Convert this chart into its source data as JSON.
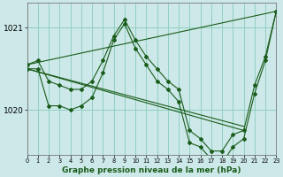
{
  "title": "Graphe pression niveau de la mer (hPa)",
  "bg_color": "#cce8e8",
  "grid_color": "#88ccbb",
  "line_color": "#1a5c1a",
  "xlim": [
    0,
    23
  ],
  "ylim": [
    1019.45,
    1021.3
  ],
  "ytick_positions": [
    1020.0,
    1021.0
  ],
  "ytick_labels": [
    "1020",
    "1021"
  ],
  "xticks": [
    0,
    1,
    2,
    3,
    4,
    5,
    6,
    7,
    8,
    9,
    10,
    11,
    12,
    13,
    14,
    15,
    16,
    17,
    18,
    19,
    20,
    21,
    22,
    23
  ],
  "line_jagged1": {
    "x": [
      0,
      1,
      2,
      3,
      4,
      5,
      6,
      7,
      8,
      9,
      10,
      11,
      12,
      13,
      14,
      15,
      16,
      17,
      18,
      19,
      20,
      21,
      22,
      23
    ],
    "y": [
      1020.55,
      1020.6,
      1020.35,
      1020.3,
      1020.25,
      1020.25,
      1020.35,
      1020.6,
      1020.9,
      1021.1,
      1020.85,
      1020.65,
      1020.45,
      1020.35,
      1020.3,
      1019.75,
      1019.65,
      1019.5,
      1019.5,
      1019.7,
      1019.75,
      1020.3,
      1020.65,
      1021.2
    ]
  },
  "line_jagged2": {
    "x": [
      0,
      1,
      2,
      3,
      4,
      5,
      6,
      7,
      8,
      9,
      10,
      11,
      12,
      13,
      14,
      15,
      16,
      17,
      18,
      19,
      20,
      21,
      22,
      23
    ],
    "y": [
      1020.5,
      1020.5,
      1020.05,
      1020.05,
      1020.0,
      1020.05,
      1020.15,
      1020.45,
      1020.85,
      1021.05,
      1020.75,
      1020.55,
      1020.35,
      1020.25,
      1020.1,
      1019.6,
      1019.55,
      1019.4,
      1019.35,
      1019.55,
      1019.65,
      1020.2,
      1020.6,
      1021.2
    ]
  },
  "line_sparse1": {
    "x": [
      0,
      2,
      3,
      5,
      6,
      7,
      8,
      9,
      10,
      11,
      12,
      13,
      14,
      15,
      16,
      17,
      18,
      19,
      20
    ],
    "y": [
      1020.5,
      1020.05,
      1020.05,
      1020.05,
      1020.15,
      1020.45,
      1020.85,
      1021.05,
      1020.75,
      1020.55,
      1020.35,
      1020.25,
      1020.1,
      1019.6,
      1019.55,
      1019.4,
      1019.35,
      1019.55,
      1019.65
    ]
  },
  "line_diagonal1": {
    "x": [
      0,
      23
    ],
    "y": [
      1020.55,
      1021.2
    ]
  },
  "line_diagonal2": {
    "x": [
      0,
      19
    ],
    "y": [
      1020.5,
      1019.65
    ]
  },
  "line_peak": {
    "x": [
      6,
      8,
      9,
      10,
      12,
      14,
      15,
      16,
      17,
      18,
      19,
      20,
      21,
      22,
      23
    ],
    "y": [
      1020.3,
      1020.85,
      1021.1,
      1020.85,
      1020.5,
      1020.25,
      1019.7,
      1019.6,
      1019.55,
      1019.35,
      1019.5,
      1019.6,
      1019.75,
      1020.6,
      1021.2
    ]
  }
}
